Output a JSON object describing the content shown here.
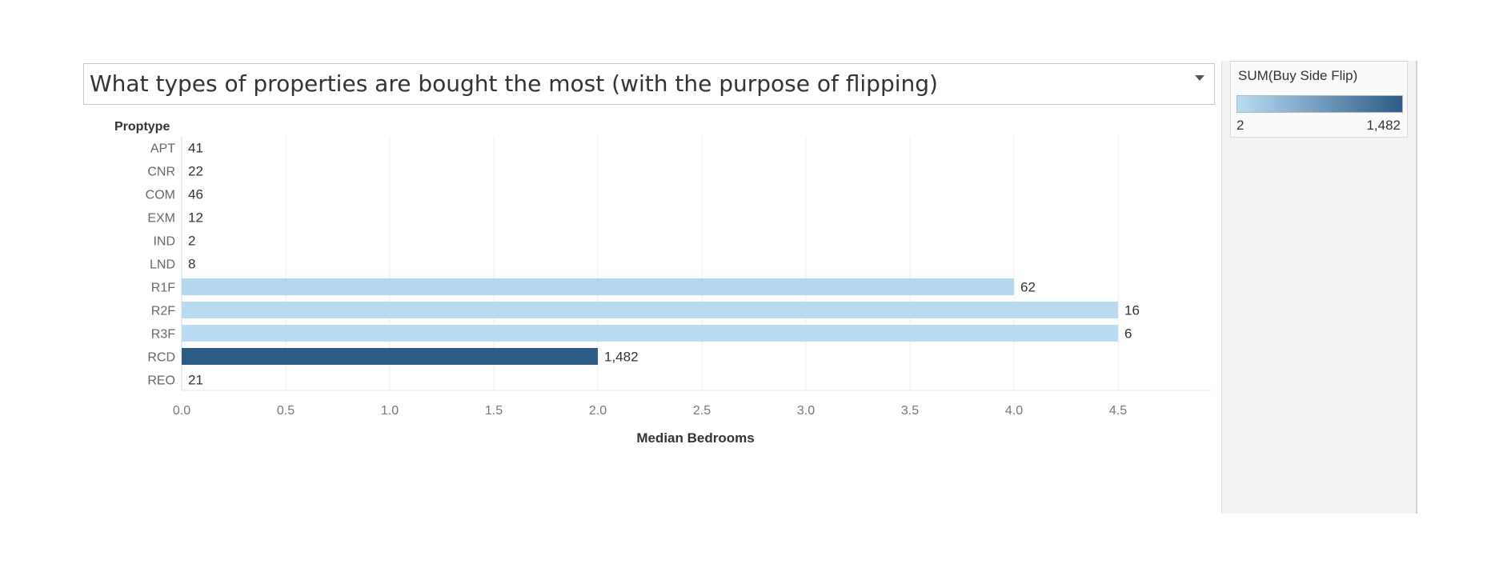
{
  "chart_data": {
    "type": "bar",
    "orientation": "horizontal",
    "title": "What types of properties are bought the most (with the purpose of flipping)",
    "row_header": "Proptype",
    "xlabel": "Median Bedrooms",
    "xlim": [
      0,
      4.95
    ],
    "xticks": [
      0.0,
      0.5,
      1.0,
      1.5,
      2.0,
      2.5,
      3.0,
      3.5,
      4.0,
      4.5
    ],
    "grid": true,
    "categories": [
      "APT",
      "CNR",
      "COM",
      "EXM",
      "IND",
      "LND",
      "R1F",
      "R2F",
      "R3F",
      "RCD",
      "REO"
    ],
    "values": [
      0,
      0,
      0,
      0,
      0,
      0,
      4.0,
      4.5,
      4.5,
      2.0,
      0
    ],
    "color_measure": "SUM(Buy Side Flip)",
    "color_values": [
      41,
      22,
      46,
      12,
      2,
      8,
      62,
      16,
      6,
      1482,
      21
    ],
    "data_labels": [
      "41",
      "22",
      "46",
      "12",
      "2",
      "8",
      "62",
      "16",
      "6",
      "1,482",
      "21"
    ],
    "legend": {
      "title": "SUM(Buy Side Flip)",
      "min_label": "2",
      "max_label": "1,482",
      "min": 2,
      "max": 1482,
      "position": "right"
    },
    "colors": {
      "low": "#b9dcf2",
      "high": "#2d5b87"
    }
  }
}
